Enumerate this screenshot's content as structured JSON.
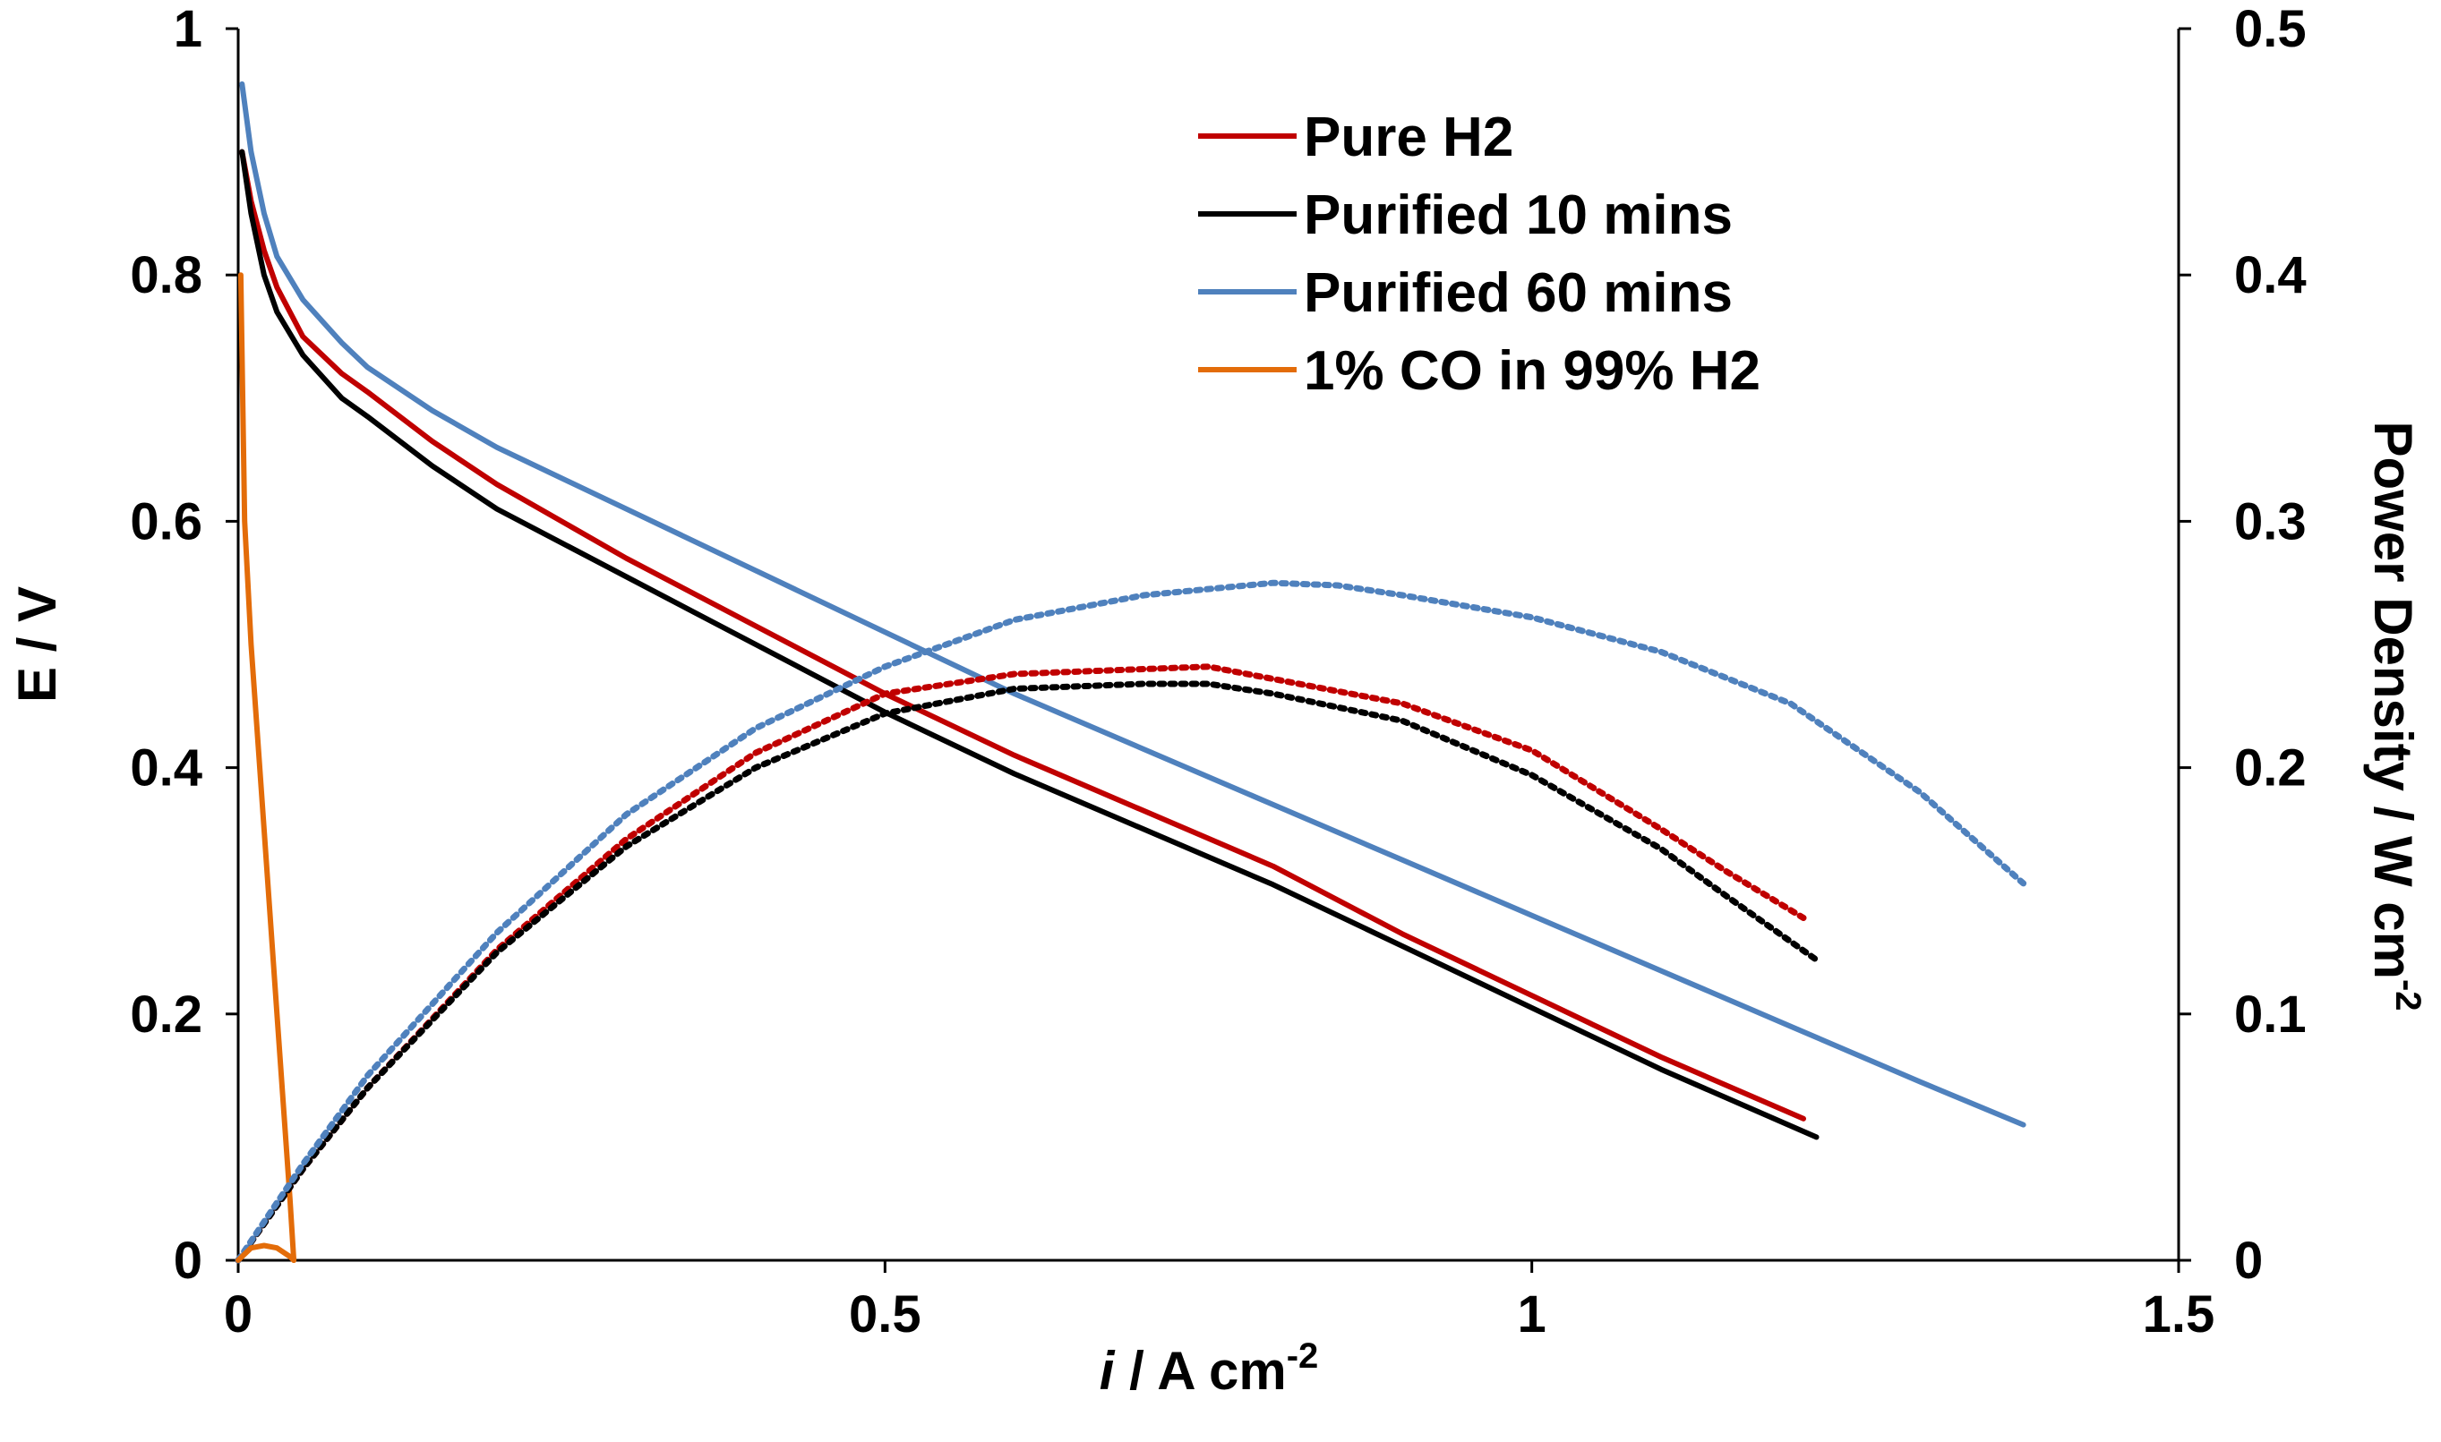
{
  "chart_data": {
    "type": "line",
    "x_axis": {
      "label_italic": "i",
      "label_text": " / A cm",
      "label_sup": "-2",
      "range": [
        0,
        1.5
      ],
      "ticks": [
        0,
        0.5,
        1,
        1.5
      ],
      "tick_labels": [
        "0",
        "0.5",
        "1",
        "1.5"
      ]
    },
    "y_axis_left": {
      "label": "E / V",
      "range": [
        0,
        1
      ],
      "ticks": [
        0,
        0.2,
        0.4,
        0.6,
        0.8,
        1
      ],
      "tick_labels": [
        "0",
        "0.2",
        "0.4",
        "0.6",
        "0.8",
        "1"
      ]
    },
    "y_axis_right": {
      "label_text": "Power Density / W cm",
      "label_sup": "-2",
      "range": [
        0,
        0.5
      ],
      "ticks": [
        0,
        0.1,
        0.2,
        0.3,
        0.4,
        0.5
      ],
      "tick_labels": [
        "0",
        "0.1",
        "0.2",
        "0.3",
        "0.4",
        "0.5"
      ]
    },
    "legend": {
      "position": "top-center",
      "entries": [
        "Pure H2",
        "Purified 10 mins",
        "Purified 60 mins",
        "1% CO in 99% H2"
      ]
    },
    "series": [
      {
        "name": "Pure H2",
        "color": "#c00000",
        "axis": "left",
        "style": "solid",
        "kind": "polarization",
        "x": [
          0.003,
          0.01,
          0.02,
          0.03,
          0.05,
          0.08,
          0.1,
          0.15,
          0.2,
          0.3,
          0.4,
          0.5,
          0.6,
          0.7,
          0.8,
          0.9,
          1.0,
          1.1,
          1.21
        ],
        "y": [
          0.9,
          0.86,
          0.82,
          0.79,
          0.75,
          0.72,
          0.705,
          0.665,
          0.63,
          0.57,
          0.515,
          0.46,
          0.41,
          0.365,
          0.32,
          0.265,
          0.215,
          0.165,
          0.115
        ]
      },
      {
        "name": "Purified 10 mins",
        "color": "#000000",
        "axis": "left",
        "style": "solid",
        "kind": "polarization",
        "x": [
          0.003,
          0.01,
          0.02,
          0.03,
          0.05,
          0.08,
          0.1,
          0.15,
          0.2,
          0.3,
          0.4,
          0.5,
          0.6,
          0.7,
          0.8,
          0.9,
          1.0,
          1.1,
          1.22
        ],
        "y": [
          0.9,
          0.85,
          0.8,
          0.77,
          0.735,
          0.7,
          0.685,
          0.645,
          0.61,
          0.555,
          0.5,
          0.445,
          0.395,
          0.35,
          0.305,
          0.255,
          0.205,
          0.155,
          0.1
        ]
      },
      {
        "name": "Purified 60 mins",
        "color": "#4f81bd",
        "axis": "left",
        "style": "solid",
        "kind": "polarization",
        "x": [
          0.003,
          0.01,
          0.02,
          0.03,
          0.05,
          0.08,
          0.1,
          0.15,
          0.2,
          0.3,
          0.4,
          0.5,
          0.6,
          0.7,
          0.8,
          0.9,
          1.0,
          1.1,
          1.2,
          1.3,
          1.38
        ],
        "y": [
          0.955,
          0.9,
          0.85,
          0.815,
          0.78,
          0.745,
          0.725,
          0.69,
          0.66,
          0.61,
          0.56,
          0.51,
          0.46,
          0.415,
          0.37,
          0.325,
          0.28,
          0.235,
          0.19,
          0.145,
          0.11
        ]
      },
      {
        "name": "1% CO in 99% H2",
        "color": "#e36c09",
        "axis": "left",
        "style": "solid",
        "kind": "polarization",
        "x": [
          0.002,
          0.005,
          0.01,
          0.02,
          0.03,
          0.04,
          0.043
        ],
        "y": [
          0.8,
          0.6,
          0.5,
          0.35,
          0.2,
          0.05,
          0.0
        ]
      },
      {
        "name": "Pure H2 power density",
        "color": "#c00000",
        "axis": "right",
        "style": "dotted",
        "kind": "power",
        "x": [
          0,
          0.05,
          0.1,
          0.2,
          0.3,
          0.4,
          0.5,
          0.6,
          0.7,
          0.75,
          0.8,
          0.9,
          1.0,
          1.1,
          1.15,
          1.21
        ],
        "y": [
          0,
          0.037,
          0.07,
          0.126,
          0.171,
          0.206,
          0.23,
          0.238,
          0.24,
          0.241,
          0.236,
          0.226,
          0.207,
          0.175,
          0.158,
          0.139
        ]
      },
      {
        "name": "Purified 10 mins power density",
        "color": "#000000",
        "axis": "right",
        "style": "dotted",
        "kind": "power",
        "x": [
          0,
          0.05,
          0.1,
          0.2,
          0.3,
          0.4,
          0.5,
          0.6,
          0.7,
          0.75,
          0.8,
          0.9,
          1.0,
          1.1,
          1.15,
          1.22
        ],
        "y": [
          0,
          0.037,
          0.07,
          0.125,
          0.168,
          0.2,
          0.222,
          0.232,
          0.234,
          0.234,
          0.23,
          0.219,
          0.197,
          0.167,
          0.148,
          0.122
        ]
      },
      {
        "name": "Purified 60 mins power density",
        "color": "#4f81bd",
        "axis": "right",
        "style": "dotted",
        "kind": "power",
        "x": [
          0,
          0.05,
          0.1,
          0.2,
          0.3,
          0.4,
          0.5,
          0.6,
          0.7,
          0.8,
          0.85,
          0.9,
          1.0,
          1.1,
          1.2,
          1.3,
          1.38
        ],
        "y": [
          0,
          0.039,
          0.075,
          0.133,
          0.181,
          0.216,
          0.241,
          0.26,
          0.27,
          0.275,
          0.274,
          0.27,
          0.261,
          0.247,
          0.226,
          0.19,
          0.153
        ]
      },
      {
        "name": "1% CO in 99% H2 power density",
        "color": "#e36c09",
        "axis": "right",
        "style": "solid",
        "kind": "power",
        "x": [
          0,
          0.01,
          0.02,
          0.03,
          0.04,
          0.043
        ],
        "y": [
          0,
          0.005,
          0.006,
          0.005,
          0.0015,
          0
        ]
      }
    ]
  }
}
